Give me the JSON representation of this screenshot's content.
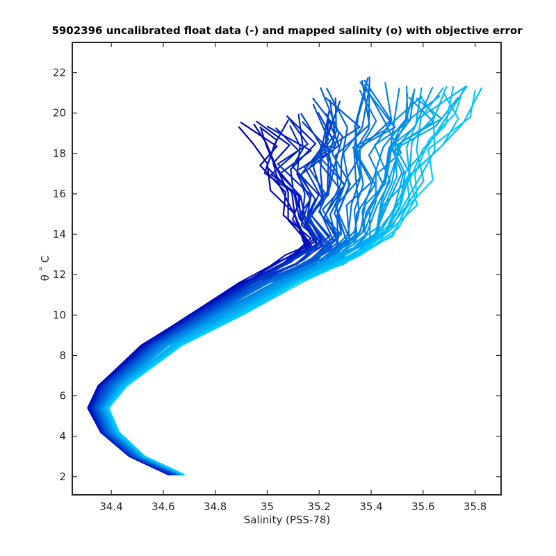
{
  "chart_data": {
    "type": "line",
    "title": "5902396 uncalibrated float data (-) and mapped salinity (o) with objective error",
    "xlabel": "Salinity (PSS-78)",
    "ylabel": "θ ˚ C",
    "xlim": [
      34.25,
      35.9
    ],
    "ylim": [
      1.1,
      23.5
    ],
    "xticks": [
      34.4,
      34.6,
      34.8,
      35,
      35.2,
      35.4,
      35.6,
      35.8
    ],
    "xtick_labels": [
      "34.4",
      "34.6",
      "34.8",
      "35",
      "35.2",
      "35.4",
      "35.6",
      "35.8"
    ],
    "yticks": [
      2,
      4,
      6,
      8,
      10,
      12,
      14,
      16,
      18,
      20,
      22
    ],
    "ytick_labels": [
      "2",
      "4",
      "6",
      "8",
      "10",
      "12",
      "14",
      "16",
      "18",
      "20",
      "22"
    ],
    "grid": false,
    "legend": "none",
    "colormap": {
      "start": "#0000b4",
      "end": "#00ccff"
    },
    "series_count": 60,
    "series": [
      {
        "points": [
          [
            34.62,
            2.1
          ],
          [
            34.47,
            3.0
          ],
          [
            34.36,
            4.2
          ],
          [
            34.31,
            5.4
          ],
          [
            34.35,
            6.5
          ],
          [
            34.52,
            8.5
          ],
          [
            34.7,
            10.0
          ],
          [
            34.9,
            11.6
          ],
          [
            35.05,
            12.7
          ],
          [
            35.15,
            13.5
          ],
          [
            35.08,
            15.0
          ],
          [
            35.02,
            16.3
          ],
          [
            34.97,
            17.4
          ],
          [
            35.0,
            18.5
          ],
          [
            34.93,
            19.2
          ]
        ]
      },
      {
        "points": [
          [
            34.64,
            2.1
          ],
          [
            34.48,
            3.0
          ],
          [
            34.37,
            4.2
          ],
          [
            34.33,
            5.4
          ],
          [
            34.37,
            6.5
          ],
          [
            34.55,
            8.5
          ],
          [
            34.74,
            10.0
          ],
          [
            34.95,
            11.6
          ],
          [
            35.12,
            12.7
          ],
          [
            35.22,
            13.6
          ],
          [
            35.15,
            14.7
          ],
          [
            35.2,
            15.8
          ],
          [
            35.14,
            17.1
          ],
          [
            35.22,
            18.3
          ],
          [
            35.18,
            19.8
          ]
        ]
      },
      {
        "points": [
          [
            34.66,
            2.1
          ],
          [
            34.5,
            3.0
          ],
          [
            34.39,
            4.2
          ],
          [
            34.35,
            5.4
          ],
          [
            34.4,
            6.5
          ],
          [
            34.58,
            8.5
          ],
          [
            34.78,
            10.0
          ],
          [
            35.0,
            11.6
          ],
          [
            35.2,
            12.7
          ],
          [
            35.3,
            13.8
          ],
          [
            35.27,
            15.2
          ],
          [
            35.33,
            16.6
          ],
          [
            35.3,
            18.0
          ],
          [
            35.37,
            19.5
          ],
          [
            35.33,
            21.5
          ]
        ]
      },
      {
        "points": [
          [
            34.67,
            2.1
          ],
          [
            34.52,
            3.0
          ],
          [
            34.41,
            4.2
          ],
          [
            34.37,
            5.4
          ],
          [
            34.43,
            6.5
          ],
          [
            34.62,
            8.5
          ],
          [
            34.83,
            10.0
          ],
          [
            35.06,
            11.6
          ],
          [
            35.27,
            12.8
          ],
          [
            35.4,
            14.0
          ],
          [
            35.44,
            15.4
          ],
          [
            35.5,
            16.8
          ],
          [
            35.5,
            18.3
          ],
          [
            35.56,
            19.6
          ],
          [
            35.6,
            21.0
          ]
        ]
      },
      {
        "points": [
          [
            34.68,
            2.1
          ],
          [
            34.53,
            3.0
          ],
          [
            34.43,
            4.2
          ],
          [
            34.39,
            5.4
          ],
          [
            34.46,
            6.5
          ],
          [
            34.67,
            8.5
          ],
          [
            34.9,
            10.0
          ],
          [
            35.14,
            11.7
          ],
          [
            35.35,
            12.9
          ],
          [
            35.5,
            14.2
          ],
          [
            35.56,
            15.6
          ],
          [
            35.6,
            16.9
          ],
          [
            35.67,
            18.4
          ],
          [
            35.74,
            19.7
          ],
          [
            35.8,
            21.1
          ]
        ]
      }
    ]
  }
}
